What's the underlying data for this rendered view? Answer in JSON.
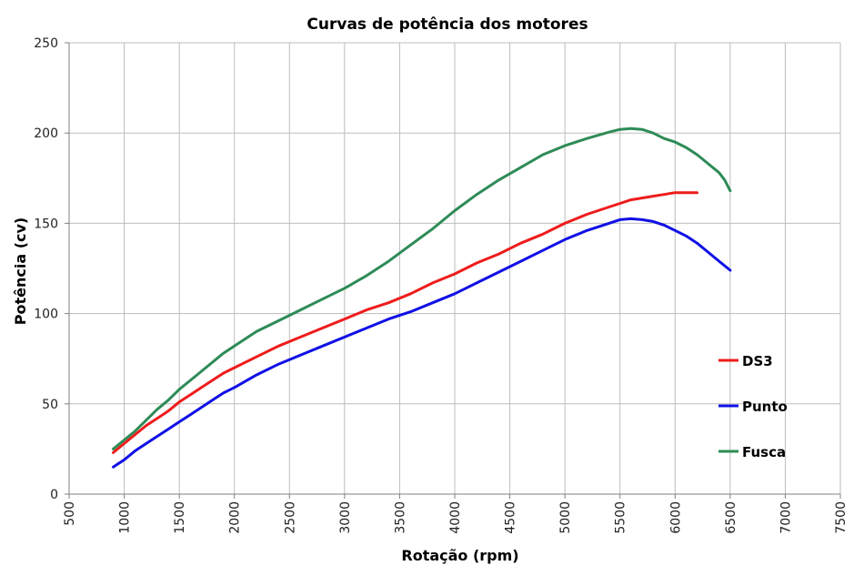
{
  "chart_data": {
    "type": "line",
    "title": "Curvas de potência dos motores",
    "xlabel": "Rotação (rpm)",
    "ylabel": "Potência (cv)",
    "xlim": [
      500,
      7500
    ],
    "ylim": [
      0,
      250
    ],
    "x_ticks": [
      500,
      1000,
      1500,
      2000,
      2500,
      3000,
      3500,
      4000,
      4500,
      5000,
      5500,
      6000,
      6500,
      7000,
      7500
    ],
    "y_ticks": [
      0,
      50,
      100,
      150,
      200,
      250
    ],
    "grid": true,
    "legend_position": "right",
    "series": [
      {
        "name": "DS3",
        "color": "#ee1c1c",
        "x": [
          900,
          1000,
          1100,
          1200,
          1300,
          1400,
          1500,
          1600,
          1700,
          1800,
          1900,
          2000,
          2200,
          2400,
          2600,
          2800,
          3000,
          3200,
          3400,
          3600,
          3800,
          4000,
          4200,
          4400,
          4600,
          4800,
          5000,
          5200,
          5400,
          5600,
          5800,
          5900,
          6000,
          6100,
          6200
        ],
        "values": [
          23,
          28,
          33,
          38,
          42,
          46,
          51,
          55,
          59,
          63,
          67,
          70,
          76,
          82,
          87,
          92,
          97,
          102,
          106,
          111,
          117,
          122,
          128,
          133,
          139,
          144,
          150,
          155,
          159,
          163,
          165,
          166,
          167,
          167,
          167
        ]
      },
      {
        "name": "Punto",
        "color": "#1010e6",
        "x": [
          900,
          1000,
          1100,
          1200,
          1300,
          1400,
          1500,
          1600,
          1700,
          1800,
          1900,
          2000,
          2200,
          2400,
          2600,
          2800,
          3000,
          3200,
          3400,
          3600,
          3800,
          4000,
          4200,
          4400,
          4600,
          4800,
          5000,
          5200,
          5400,
          5500,
          5600,
          5700,
          5800,
          5900,
          6000,
          6100,
          6200,
          6300,
          6400,
          6500
        ],
        "values": [
          15,
          19,
          24,
          28,
          32,
          36,
          40,
          44,
          48,
          52,
          56,
          59,
          66,
          72,
          77,
          82,
          87,
          92,
          97,
          101,
          106,
          111,
          117,
          123,
          129,
          135,
          141,
          146,
          150,
          152,
          152.5,
          152,
          151,
          149,
          146,
          143,
          139,
          134,
          129,
          124
        ]
      },
      {
        "name": "Fusca",
        "color": "#2e8b57",
        "x": [
          900,
          1000,
          1100,
          1200,
          1300,
          1400,
          1500,
          1600,
          1700,
          1800,
          1900,
          2000,
          2200,
          2400,
          2600,
          2800,
          3000,
          3200,
          3400,
          3600,
          3800,
          4000,
          4200,
          4400,
          4600,
          4800,
          5000,
          5200,
          5400,
          5500,
          5600,
          5700,
          5800,
          5900,
          6000,
          6100,
          6200,
          6300,
          6400,
          6450,
          6500
        ],
        "values": [
          25,
          30,
          35,
          41,
          47,
          52,
          58,
          63,
          68,
          73,
          78,
          82,
          90,
          96,
          102,
          108,
          114,
          121,
          129,
          138,
          147,
          157,
          166,
          174,
          181,
          188,
          193,
          197,
          200.5,
          202,
          202.5,
          202,
          200,
          197,
          195,
          192,
          188,
          183,
          178,
          174,
          168
        ]
      }
    ]
  }
}
